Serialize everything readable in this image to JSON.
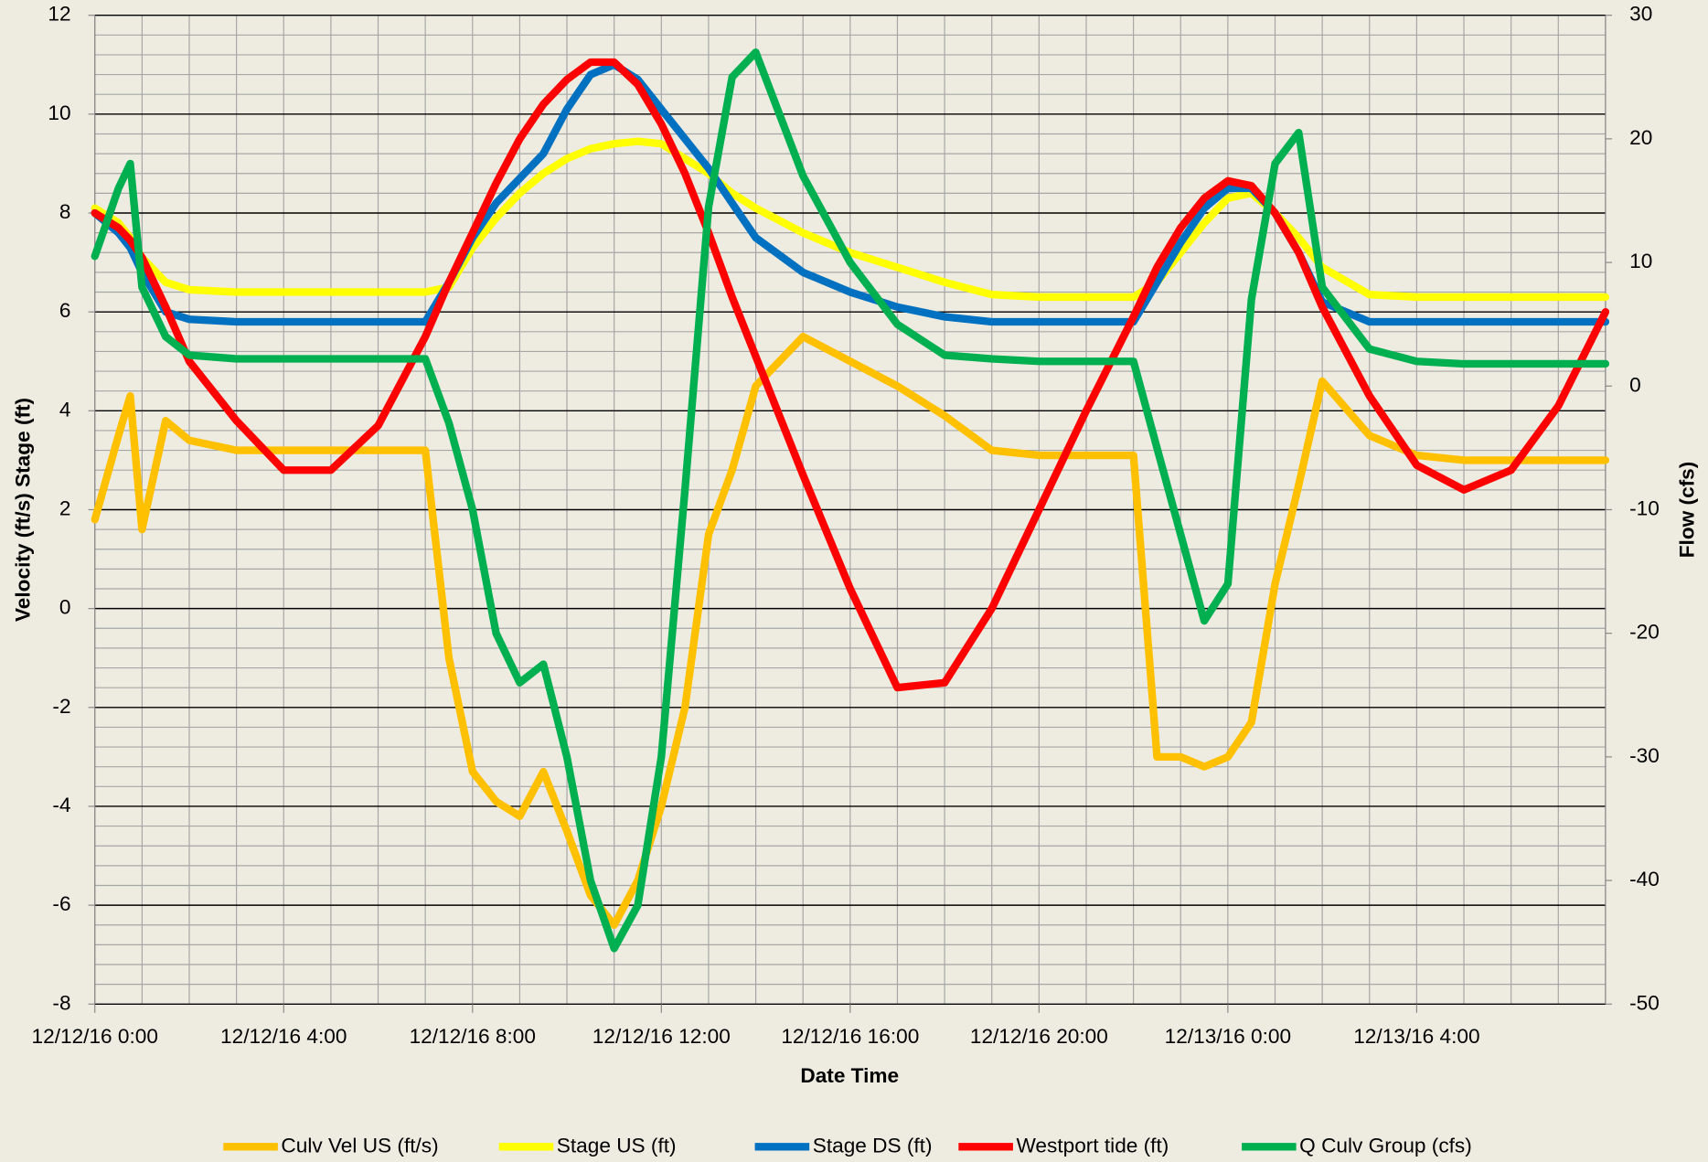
{
  "chart_data": {
    "type": "line",
    "xlabel": "Date Time",
    "ylabel": "Velocity (ft/s) Stage (ft)",
    "y2label": "Flow (cfs)",
    "x": [
      0,
      0.5,
      0.75,
      1,
      1.5,
      2,
      3,
      4,
      5,
      6,
      7,
      7.5,
      8,
      8.5,
      9,
      9.5,
      10,
      10.5,
      11,
      11.5,
      12,
      12.5,
      13,
      13.5,
      14,
      15,
      16,
      17,
      18,
      19,
      20,
      21,
      22,
      22.5,
      23,
      23.5,
      24,
      24.5,
      25,
      25.5,
      26,
      27,
      28,
      29,
      30,
      31,
      32
    ],
    "xlim": [
      0,
      32
    ],
    "xticks": [
      {
        "value": 0,
        "label": "12/12/16 0:00"
      },
      {
        "value": 4,
        "label": "12/12/16 4:00"
      },
      {
        "value": 8,
        "label": "12/12/16 8:00"
      },
      {
        "value": 12,
        "label": "12/12/16 12:00"
      },
      {
        "value": 16,
        "label": "12/12/16 16:00"
      },
      {
        "value": 20,
        "label": "12/12/16 20:00"
      },
      {
        "value": 24,
        "label": "12/13/16 0:00"
      },
      {
        "value": 28,
        "label": "12/13/16 4:00"
      }
    ],
    "xminorticks": [
      0,
      1,
      2,
      3,
      4,
      5,
      6,
      7,
      8,
      9,
      10,
      11,
      12,
      13,
      14,
      15,
      16,
      17,
      18,
      19,
      20,
      21,
      22,
      23,
      24,
      25,
      26,
      27,
      28,
      29,
      30,
      31,
      32
    ],
    "ylim": [
      -8,
      12
    ],
    "yticks": [
      -8,
      -6,
      -4,
      -2,
      0,
      2,
      4,
      6,
      8,
      10,
      12
    ],
    "yminorticks": [
      -7.6,
      -7.2,
      -6.8,
      -6.4,
      -5.6,
      -5.2,
      -4.8,
      -4.4,
      -3.6,
      -3.2,
      -2.8,
      -2.4,
      -1.6,
      -1.2,
      -0.8,
      -0.4,
      0.4,
      0.8,
      1.2,
      1.6,
      2.4,
      2.8,
      3.2,
      3.6,
      4.4,
      4.8,
      5.2,
      5.6,
      6.4,
      6.8,
      7.2,
      7.6,
      8.4,
      8.8,
      9.2,
      9.6,
      10.4,
      10.8,
      11.2,
      11.6
    ],
    "y2lim": [
      -50,
      30
    ],
    "y2ticks": [
      -50,
      -40,
      -30,
      -20,
      -10,
      0,
      10,
      20,
      30
    ],
    "grid": true,
    "legend": "bottom",
    "series": [
      {
        "name": "Culv Vel US (ft/s)",
        "color": "#ffc000",
        "values": [
          1.8,
          3.5,
          4.3,
          1.6,
          3.8,
          3.4,
          3.2,
          3.2,
          3.2,
          3.2,
          3.2,
          -1.0,
          -3.3,
          -3.9,
          -4.2,
          -3.3,
          -4.5,
          -5.8,
          -6.4,
          -5.5,
          -4.0,
          -2.0,
          1.5,
          2.8,
          4.5,
          5.5,
          5.0,
          4.5,
          3.9,
          3.2,
          3.1,
          3.1,
          3.1,
          -3.0,
          -3.0,
          -3.2,
          -3.0,
          -2.3,
          0.5,
          2.5,
          4.6,
          3.5,
          3.1,
          3.0,
          3.0,
          3.0,
          3.0
        ]
      },
      {
        "name": "Stage US (ft)",
        "color": "#ffff00",
        "values": [
          8.1,
          7.8,
          7.5,
          7.1,
          6.6,
          6.45,
          6.4,
          6.4,
          6.4,
          6.4,
          6.4,
          6.5,
          7.3,
          7.9,
          8.4,
          8.8,
          9.1,
          9.3,
          9.4,
          9.45,
          9.4,
          9.1,
          8.8,
          8.4,
          8.1,
          7.6,
          7.2,
          6.9,
          6.6,
          6.35,
          6.3,
          6.3,
          6.3,
          6.6,
          7.2,
          7.8,
          8.3,
          8.4,
          8.0,
          7.5,
          6.9,
          6.35,
          6.3,
          6.3,
          6.3,
          6.3,
          6.3
        ]
      },
      {
        "name": "Stage DS (ft)",
        "color": "#0070c0",
        "values": [
          8.0,
          7.6,
          7.3,
          6.8,
          6.0,
          5.85,
          5.8,
          5.8,
          5.8,
          5.8,
          5.8,
          6.6,
          7.5,
          8.2,
          8.7,
          9.2,
          10.1,
          10.8,
          11.0,
          10.7,
          10.1,
          9.5,
          8.9,
          8.2,
          7.5,
          6.8,
          6.4,
          6.1,
          5.9,
          5.8,
          5.8,
          5.8,
          5.8,
          6.6,
          7.4,
          8.1,
          8.5,
          8.5,
          8.0,
          7.2,
          6.2,
          5.8,
          5.8,
          5.8,
          5.8,
          5.8,
          5.8
        ]
      },
      {
        "name": "Westport tide (ft)",
        "color": "#ff0000",
        "values": [
          8.0,
          7.7,
          7.45,
          7.1,
          6.1,
          5.0,
          3.8,
          2.8,
          2.8,
          3.7,
          5.5,
          6.6,
          7.6,
          8.6,
          9.5,
          10.2,
          10.7,
          11.05,
          11.05,
          10.6,
          9.8,
          8.8,
          7.6,
          6.3,
          5.1,
          2.7,
          0.4,
          -1.6,
          -1.5,
          0,
          2,
          4,
          5.9,
          6.9,
          7.7,
          8.3,
          8.65,
          8.55,
          8.0,
          7.2,
          6.1,
          4.3,
          2.9,
          2.4,
          2.8,
          4.1,
          6.0
        ]
      },
      {
        "name": "Q Culv Group (cfs)",
        "color": "#00b050",
        "axis": "y2",
        "values": [
          10.5,
          16,
          18,
          8,
          4,
          2.5,
          2.2,
          2.2,
          2.2,
          2.2,
          2.2,
          -3,
          -10,
          -20,
          -24,
          -22.5,
          -30,
          -40,
          -45.5,
          -42,
          -30,
          -8.4,
          14.5,
          25,
          27,
          17,
          10,
          5,
          2.5,
          2.2,
          2,
          2,
          2,
          -5,
          -12,
          -19,
          -16,
          7,
          18,
          20.5,
          8,
          3,
          2,
          1.8,
          1.8,
          1.8,
          1.8
        ]
      }
    ]
  }
}
